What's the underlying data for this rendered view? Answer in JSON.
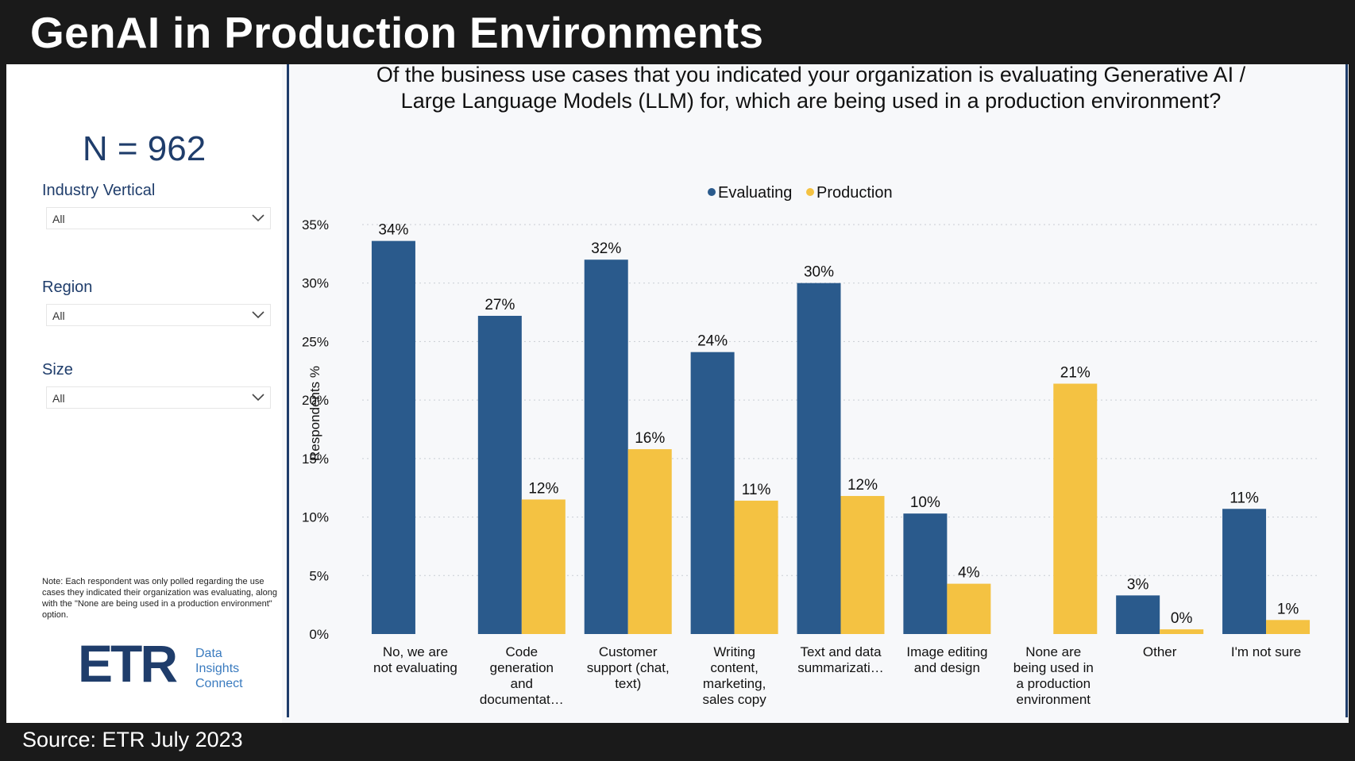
{
  "header": {
    "title": "GenAI in Production Environments"
  },
  "sidebar": {
    "n_count": "N = 962",
    "filters": [
      {
        "label": "Industry Vertical",
        "value": "All"
      },
      {
        "label": "Region",
        "value": "All"
      },
      {
        "label": "Size",
        "value": "All"
      }
    ],
    "note": "Note: Each respondent was only polled regarding the use cases they indicated their organization was evaluating, along with the \"None are being used in a production environment\" option.",
    "logo": {
      "mark": "ETR",
      "line1": "Data",
      "line2": "Insights",
      "line3": "Connect"
    }
  },
  "footer": {
    "source": "Source: ETR July 2023"
  },
  "colors": {
    "evaluating": "#2a5a8c",
    "production": "#f4c242",
    "navy": "#1f3d6b"
  },
  "chart_data": {
    "type": "bar",
    "title": "Of the business use cases that you indicated your organization is evaluating Generative AI / Large Language Models (LLM) for, which are being used in a production environment?",
    "title_lines": [
      "Of the business use cases that you indicated your organization is evaluating Generative AI /",
      "Large Language Models (LLM) for, which are being used in a production environment?"
    ],
    "ylabel": "Respondents %",
    "ylim": [
      0,
      35
    ],
    "yticks": [
      0,
      5,
      10,
      15,
      20,
      25,
      30,
      35
    ],
    "ytick_labels": [
      "0%",
      "5%",
      "10%",
      "15%",
      "20%",
      "25%",
      "30%",
      "35%"
    ],
    "legend_position": "top-center",
    "grid": true,
    "categories": [
      [
        "No, we are",
        "not evaluating"
      ],
      [
        "Code",
        "generation",
        "and",
        "documentat…"
      ],
      [
        "Customer",
        "support (chat,",
        "text)"
      ],
      [
        "Writing",
        "content,",
        "marketing,",
        "sales copy"
      ],
      [
        "Text and data",
        "summarizati…"
      ],
      [
        "Image editing",
        "and design"
      ],
      [
        "None are",
        "being used in",
        "a production",
        "environment"
      ],
      [
        "Other"
      ],
      [
        "I'm not sure"
      ]
    ],
    "series": [
      {
        "name": "Evaluating",
        "values": [
          33.6,
          27.2,
          32.0,
          24.1,
          30.0,
          10.3,
          null,
          3.3,
          10.7
        ],
        "labels": [
          "34%",
          "27%",
          "32%",
          "24%",
          "30%",
          "10%",
          "",
          "3%",
          "11%"
        ]
      },
      {
        "name": "Production",
        "values": [
          null,
          11.5,
          15.8,
          11.4,
          11.8,
          4.3,
          21.4,
          0.4,
          1.2
        ],
        "labels": [
          "",
          "12%",
          "16%",
          "11%",
          "12%",
          "4%",
          "21%",
          "0%",
          "1%"
        ]
      }
    ]
  }
}
